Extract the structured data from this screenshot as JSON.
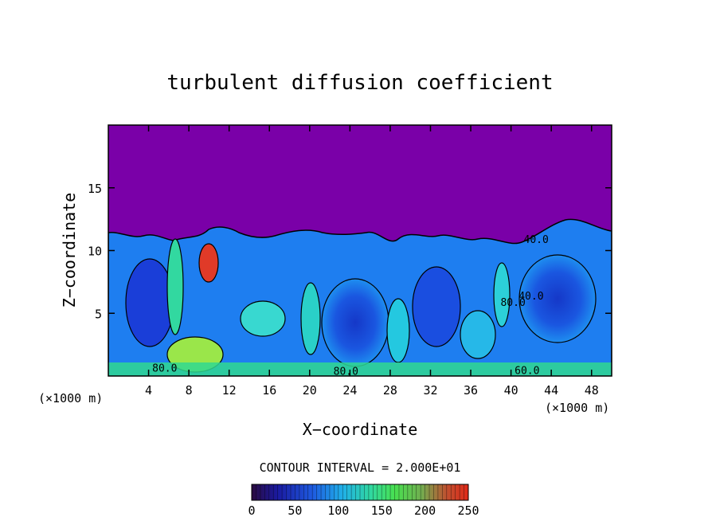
{
  "chart_data": {
    "type": "heatmap",
    "title": "turbulent diffusion coefficient",
    "xlabel": "X−coordinate",
    "ylabel": "Z−coordinate",
    "x_unit_left": "(×1000 m)",
    "x_unit_right": "(×1000 m)",
    "xlim": [
      0,
      50
    ],
    "ylim": [
      0,
      20
    ],
    "x_ticks": [
      4,
      8,
      12,
      16,
      20,
      24,
      28,
      32,
      36,
      40,
      44,
      48
    ],
    "y_ticks": [
      5,
      10,
      15
    ],
    "contour_interval_text": "CONTOUR INTERVAL = 2.000E+01",
    "contour_interval": 20,
    "contour_labels": [
      {
        "text": "80.0",
        "x": 5.6,
        "y": 0.35
      },
      {
        "text": "80.0",
        "x": 23.6,
        "y": 0.1
      },
      {
        "text": "60.0",
        "x": 41.6,
        "y": 0.15
      },
      {
        "text": "80.0",
        "x": 40.2,
        "y": 5.6
      },
      {
        "text": "40.0",
        "x": 42.0,
        "y": 6.1
      },
      {
        "text": "40.0",
        "x": 42.5,
        "y": 10.6
      }
    ],
    "colorbar": {
      "min": 0,
      "max": 250,
      "tick_labels": [
        "0",
        "50",
        "100",
        "150",
        "200",
        "250"
      ],
      "tick_values": [
        0,
        50,
        100,
        150,
        200,
        250
      ]
    },
    "colors": {
      "above_boundary": "#7a00a8",
      "low": "#1a2ad8",
      "mid_low": "#1e8cf0",
      "mid": "#2ad0e8",
      "high": "#40f070",
      "peak": "#e03020"
    }
  }
}
